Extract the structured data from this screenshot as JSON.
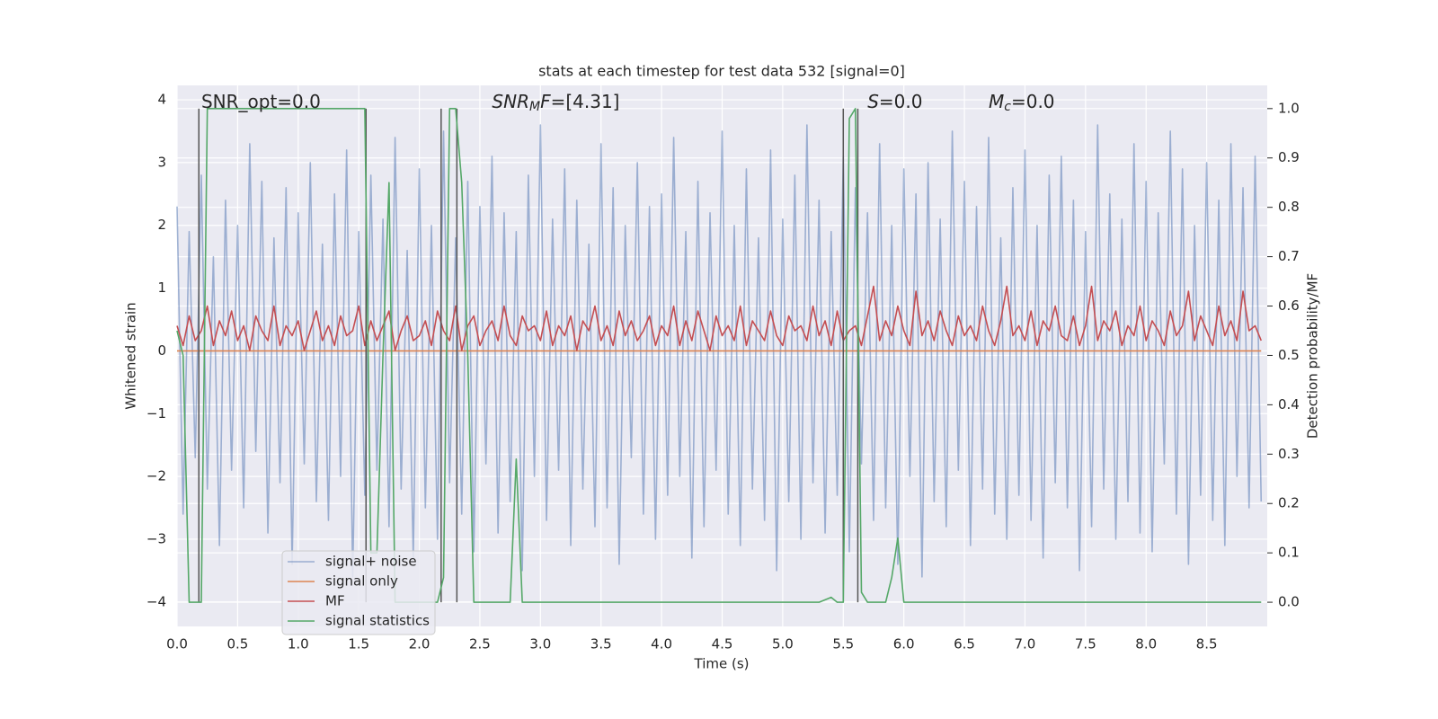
{
  "chart_data": {
    "type": "line",
    "title": "stats at each timestep for test data 532 [signal=0]",
    "xlabel": "Time (s)",
    "ylabel": "Whitened strain",
    "y2label": "Detection probability/MF",
    "xlim": [
      0,
      9.0
    ],
    "ylim": [
      -4.39,
      4.23
    ],
    "y2lim": [
      -0.049,
      1.047
    ],
    "xticks": [
      {
        "value": 0,
        "label": "0.0"
      },
      {
        "value": 0.5,
        "label": "0.5"
      },
      {
        "value": 1,
        "label": "1.0"
      },
      {
        "value": 1.5,
        "label": "1.5"
      },
      {
        "value": 2,
        "label": "2.0"
      },
      {
        "value": 2.5,
        "label": "2.5"
      },
      {
        "value": 3,
        "label": "3.0"
      },
      {
        "value": 3.5,
        "label": "3.5"
      },
      {
        "value": 4,
        "label": "4.0"
      },
      {
        "value": 4.5,
        "label": "4.5"
      },
      {
        "value": 5,
        "label": "5.0"
      },
      {
        "value": 5.5,
        "label": "5.5"
      },
      {
        "value": 6,
        "label": "6.0"
      },
      {
        "value": 6.5,
        "label": "6.5"
      },
      {
        "value": 7,
        "label": "7.0"
      },
      {
        "value": 7.5,
        "label": "7.5"
      },
      {
        "value": 8,
        "label": "8.0"
      },
      {
        "value": 8.5,
        "label": "8.5"
      }
    ],
    "yticks": [
      {
        "value": -4,
        "label": "−4"
      },
      {
        "value": -3,
        "label": "−3"
      },
      {
        "value": -2,
        "label": "−2"
      },
      {
        "value": -1,
        "label": "−1"
      },
      0,
      1,
      2,
      3,
      4
    ],
    "y2ticks": [
      {
        "value": 0,
        "label": "0.0"
      },
      {
        "value": 0.1,
        "label": "0.1"
      },
      {
        "value": 0.2,
        "label": "0.2"
      },
      {
        "value": 0.3,
        "label": "0.3"
      },
      {
        "value": 0.4,
        "label": "0.4"
      },
      {
        "value": 0.5,
        "label": "0.5"
      },
      {
        "value": 0.6,
        "label": "0.6"
      },
      {
        "value": 0.7,
        "label": "0.7"
      },
      {
        "value": 0.8,
        "label": "0.8"
      },
      {
        "value": 0.9,
        "label": "0.9"
      },
      {
        "value": 1,
        "label": "1.0"
      }
    ],
    "grid": true,
    "legend": "lower left",
    "x": [
      0,
      0.05,
      0.1,
      0.15,
      0.2,
      0.25,
      0.3,
      0.35,
      0.4,
      0.45,
      0.5,
      0.55,
      0.6,
      0.65,
      0.7,
      0.75,
      0.8,
      0.85,
      0.9,
      0.95,
      1,
      1.05,
      1.1,
      1.15,
      1.2,
      1.25,
      1.3,
      1.35,
      1.4,
      1.45,
      1.5,
      1.55,
      1.6,
      1.65,
      1.7,
      1.75,
      1.8,
      1.85,
      1.9,
      1.95,
      2,
      2.05,
      2.1,
      2.15,
      2.2,
      2.25,
      2.3,
      2.35,
      2.4,
      2.45,
      2.5,
      2.55,
      2.6,
      2.65,
      2.7,
      2.75,
      2.8,
      2.85,
      2.9,
      2.95,
      3,
      3.05,
      3.1,
      3.15,
      3.2,
      3.25,
      3.3,
      3.35,
      3.4,
      3.45,
      3.5,
      3.55,
      3.6,
      3.65,
      3.7,
      3.75,
      3.8,
      3.85,
      3.9,
      3.95,
      4,
      4.05,
      4.1,
      4.15,
      4.2,
      4.25,
      4.3,
      4.35,
      4.4,
      4.45,
      4.5,
      4.55,
      4.6,
      4.65,
      4.7,
      4.75,
      4.8,
      4.85,
      4.9,
      4.95,
      5,
      5.05,
      5.1,
      5.15,
      5.2,
      5.25,
      5.3,
      5.35,
      5.4,
      5.45,
      5.5,
      5.55,
      5.6,
      5.65,
      5.7,
      5.75,
      5.8,
      5.85,
      5.9,
      5.95,
      6,
      6.05,
      6.1,
      6.15,
      6.2,
      6.25,
      6.3,
      6.35,
      6.4,
      6.45,
      6.5,
      6.55,
      6.6,
      6.65,
      6.7,
      6.75,
      6.8,
      6.85,
      6.9,
      6.95,
      7,
      7.05,
      7.1,
      7.15,
      7.2,
      7.25,
      7.3,
      7.35,
      7.4,
      7.45,
      7.5,
      7.55,
      7.6,
      7.65,
      7.7,
      7.75,
      7.8,
      7.85,
      7.9,
      7.95,
      8,
      8.05,
      8.1,
      8.15,
      8.2,
      8.25,
      8.3,
      8.35,
      8.4,
      8.45,
      8.5,
      8.55,
      8.6,
      8.65,
      8.7,
      8.75,
      8.8,
      8.85,
      8.9,
      8.95
    ],
    "series": [
      {
        "name": "signal+ noise",
        "color": "#4c72b0",
        "alpha": 0.5,
        "axis": "y",
        "values": [
          2.3,
          -2.6,
          1.9,
          -1.7,
          2.8,
          -2.2,
          1.5,
          -3.1,
          2.4,
          -1.9,
          2.0,
          -2.5,
          3.3,
          -1.6,
          2.7,
          -2.9,
          1.8,
          -2.1,
          2.6,
          -3.4,
          2.2,
          -1.8,
          3.0,
          -2.4,
          1.7,
          -2.7,
          2.5,
          -2.0,
          3.2,
          -3.6,
          1.9,
          -2.3,
          2.8,
          -1.9,
          2.1,
          -2.8,
          3.4,
          -2.2,
          1.6,
          -3.3,
          2.9,
          -2.5,
          2.0,
          -3.0,
          3.5,
          -2.1,
          1.8,
          -2.6,
          2.7,
          -3.2,
          2.3,
          -1.8,
          3.1,
          -2.9,
          2.2,
          -2.4,
          1.9,
          -3.5,
          2.8,
          -2.0,
          3.6,
          -2.7,
          2.1,
          -1.9,
          2.9,
          -3.1,
          2.4,
          -2.2,
          1.7,
          -2.8,
          3.3,
          -2.5,
          2.6,
          -3.4,
          2.0,
          -1.7,
          3.0,
          -2.6,
          2.3,
          -3.0,
          2.5,
          -2.3,
          3.4,
          -2.0,
          1.9,
          -3.3,
          2.7,
          -2.8,
          2.2,
          -1.9,
          3.5,
          -2.6,
          2.0,
          -3.1,
          2.9,
          -2.2,
          1.8,
          -2.7,
          3.2,
          -3.5,
          2.1,
          -2.4,
          2.8,
          -3.0,
          3.6,
          -2.1,
          2.4,
          -2.9,
          1.9,
          -2.3,
          3.1,
          -3.2,
          2.6,
          -1.8,
          2.2,
          -2.7,
          3.3,
          -2.5,
          2.0,
          -3.4,
          2.9,
          -2.0,
          2.5,
          -3.6,
          3.0,
          -2.4,
          2.1,
          -2.8,
          3.5,
          -1.9,
          2.7,
          -3.1,
          2.3,
          -2.2,
          3.4,
          -2.6,
          1.8,
          -3.0,
          2.6,
          -2.3,
          3.2,
          -2.7,
          2.0,
          -3.3,
          2.8,
          -2.1,
          3.1,
          -2.5,
          2.4,
          -3.5,
          1.9,
          -2.8,
          3.6,
          -2.2,
          2.5,
          -3.0,
          2.1,
          -2.4,
          3.3,
          -2.9,
          2.7,
          -3.2,
          2.2,
          -1.8,
          3.5,
          -2.6,
          2.9,
          -3.4,
          2.0,
          -2.3,
          3.0,
          -2.7,
          2.4,
          -3.1,
          3.3,
          -2.0,
          2.6,
          -2.5,
          3.1,
          -2.4
        ]
      },
      {
        "name": "signal only",
        "color": "#dd8452",
        "axis": "y",
        "x": [
          0,
          8.95
        ],
        "values": [
          0,
          0
        ]
      },
      {
        "name": "MF",
        "color": "#c44e52",
        "axis": "y2",
        "values": [
          0.56,
          0.52,
          0.58,
          0.53,
          0.55,
          0.6,
          0.52,
          0.57,
          0.54,
          0.59,
          0.53,
          0.56,
          0.51,
          0.58,
          0.55,
          0.53,
          0.6,
          0.52,
          0.56,
          0.54,
          0.57,
          0.51,
          0.55,
          0.59,
          0.53,
          0.56,
          0.52,
          0.58,
          0.54,
          0.55,
          0.6,
          0.52,
          0.57,
          0.53,
          0.56,
          0.59,
          0.51,
          0.55,
          0.58,
          0.53,
          0.54,
          0.57,
          0.52,
          0.59,
          0.55,
          0.53,
          0.6,
          0.51,
          0.56,
          0.58,
          0.52,
          0.55,
          0.57,
          0.53,
          0.6,
          0.54,
          0.52,
          0.58,
          0.55,
          0.56,
          0.53,
          0.59,
          0.52,
          0.56,
          0.54,
          0.58,
          0.51,
          0.57,
          0.55,
          0.6,
          0.53,
          0.56,
          0.52,
          0.59,
          0.54,
          0.57,
          0.53,
          0.55,
          0.58,
          0.52,
          0.56,
          0.54,
          0.6,
          0.52,
          0.57,
          0.53,
          0.59,
          0.55,
          0.51,
          0.58,
          0.54,
          0.56,
          0.53,
          0.6,
          0.52,
          0.57,
          0.55,
          0.53,
          0.59,
          0.54,
          0.52,
          0.58,
          0.55,
          0.56,
          0.53,
          0.6,
          0.54,
          0.57,
          0.52,
          0.59,
          0.53,
          0.55,
          0.56,
          0.52,
          0.58,
          0.64,
          0.53,
          0.57,
          0.54,
          0.6,
          0.55,
          0.52,
          0.63,
          0.54,
          0.57,
          0.53,
          0.59,
          0.55,
          0.52,
          0.58,
          0.54,
          0.56,
          0.53,
          0.6,
          0.55,
          0.52,
          0.57,
          0.64,
          0.54,
          0.56,
          0.53,
          0.59,
          0.52,
          0.57,
          0.55,
          0.6,
          0.54,
          0.53,
          0.58,
          0.52,
          0.56,
          0.64,
          0.53,
          0.57,
          0.55,
          0.59,
          0.52,
          0.56,
          0.54,
          0.6,
          0.53,
          0.57,
          0.55,
          0.52,
          0.59,
          0.54,
          0.56,
          0.63,
          0.53,
          0.58,
          0.55,
          0.52,
          0.6,
          0.54,
          0.57,
          0.53,
          0.63,
          0.55,
          0.56,
          0.53
        ]
      },
      {
        "name": "signal statistics",
        "color": "#55a868",
        "axis": "y2",
        "values": [
          0.55,
          0.5,
          0,
          0,
          0,
          1,
          1,
          1,
          1,
          1,
          1,
          1,
          1,
          1,
          1,
          1,
          1,
          1,
          1,
          1,
          1,
          1,
          1,
          1,
          1,
          1,
          1,
          1,
          1,
          1,
          1,
          1,
          0.1,
          0.1,
          0.5,
          0.85,
          0,
          0,
          0,
          0,
          0,
          0,
          0,
          0,
          0.05,
          1,
          1,
          0.85,
          0.5,
          0,
          0,
          0,
          0,
          0,
          0,
          0,
          0.29,
          0,
          0,
          0,
          0,
          0,
          0,
          0,
          0,
          0,
          0,
          0,
          0,
          0,
          0,
          0,
          0,
          0,
          0,
          0,
          0,
          0,
          0,
          0,
          0,
          0,
          0,
          0,
          0,
          0,
          0,
          0,
          0,
          0,
          0,
          0,
          0,
          0,
          0,
          0,
          0,
          0,
          0,
          0,
          0,
          0,
          0,
          0,
          0,
          0,
          0,
          0.005,
          0.01,
          0,
          0,
          0.98,
          1,
          0.02,
          0,
          0,
          0,
          0,
          0.05,
          0.13,
          0,
          0,
          0,
          0,
          0,
          0,
          0,
          0,
          0,
          0,
          0,
          0,
          0,
          0,
          0,
          0,
          0,
          0,
          0,
          0,
          0,
          0,
          0,
          0,
          0,
          0,
          0,
          0,
          0,
          0,
          0,
          0,
          0,
          0,
          0,
          0,
          0,
          0,
          0,
          0,
          0,
          0,
          0,
          0,
          0,
          0,
          0,
          0,
          0,
          0,
          0,
          0,
          0,
          0,
          0,
          0,
          0,
          0,
          0,
          0
        ]
      }
    ],
    "vlines": {
      "color": "#555555",
      "axis": "y2",
      "range": [
        0,
        1
      ],
      "x": [
        0.18,
        1.56,
        2.18,
        2.31,
        5.5,
        5.62
      ]
    },
    "annotations": [
      {
        "x": 0.2,
        "y": 3.96,
        "parts": [
          {
            "text": "SNR_opt=0.0"
          }
        ]
      },
      {
        "x": 2.6,
        "y": 3.96,
        "parts": [
          {
            "text": "SNR",
            "italic": true
          },
          {
            "text": "M",
            "italic": true,
            "sub": true
          },
          {
            "text": "F",
            "italic": true
          },
          {
            "text": "=[4.31]"
          }
        ]
      },
      {
        "x": 5.7,
        "y": 3.96,
        "parts": [
          {
            "text": "S",
            "italic": true
          },
          {
            "text": "=0.0"
          }
        ]
      },
      {
        "x": 6.7,
        "y": 3.96,
        "parts": [
          {
            "text": "M",
            "italic": true
          },
          {
            "text": "c",
            "italic": true,
            "sub": true
          },
          {
            "text": "=0.0"
          }
        ]
      }
    ]
  }
}
